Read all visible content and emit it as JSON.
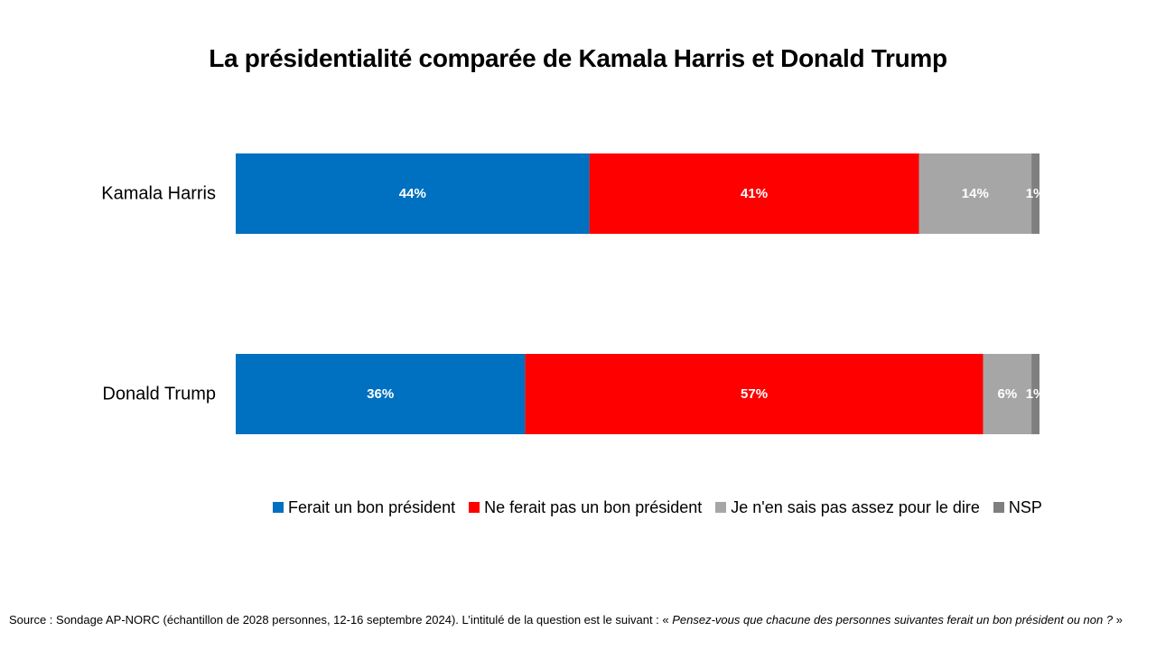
{
  "colors": {
    "bon": "#0070c0",
    "pas_bon": "#ff0000",
    "ne_sait_pas": "#a6a6a6",
    "nsp": "#7f7f7f",
    "label_text": "#ffffff"
  },
  "chart_data": {
    "type": "bar",
    "orientation": "horizontal",
    "stacked": true,
    "title": "La présidentialité comparée de Kamala Harris et Donald Trump",
    "categories": [
      "Kamala Harris",
      "Donald Trump"
    ],
    "series": [
      {
        "name": "Ferait un bon président",
        "color": "#0070c0",
        "values": [
          44,
          36
        ],
        "labels": [
          "44%",
          "36%"
        ]
      },
      {
        "name": "Ne ferait pas un bon président",
        "color": "#ff0000",
        "values": [
          41,
          57
        ],
        "labels": [
          "41%",
          "57%"
        ]
      },
      {
        "name": "Je n'en sais pas assez pour le dire",
        "color": "#a6a6a6",
        "values": [
          14,
          6
        ],
        "labels": [
          "14%",
          "6%"
        ]
      },
      {
        "name": "NSP",
        "color": "#7f7f7f",
        "values": [
          1,
          1
        ],
        "labels": [
          "1%",
          "1%"
        ]
      }
    ],
    "xlim": [
      0,
      100
    ],
    "grid": false,
    "legend_position": "bottom",
    "xlabel": "",
    "ylabel": ""
  },
  "source": {
    "prefix": "Source : Sondage AP-NORC (échantillon de 2028 personnes, 12-16 septembre 2024). L’intitulé de la question est le suivant : « ",
    "question": "Pensez-vous que chacune des personnes suivantes ferait un bon président ou non ?",
    "suffix": " »"
  }
}
